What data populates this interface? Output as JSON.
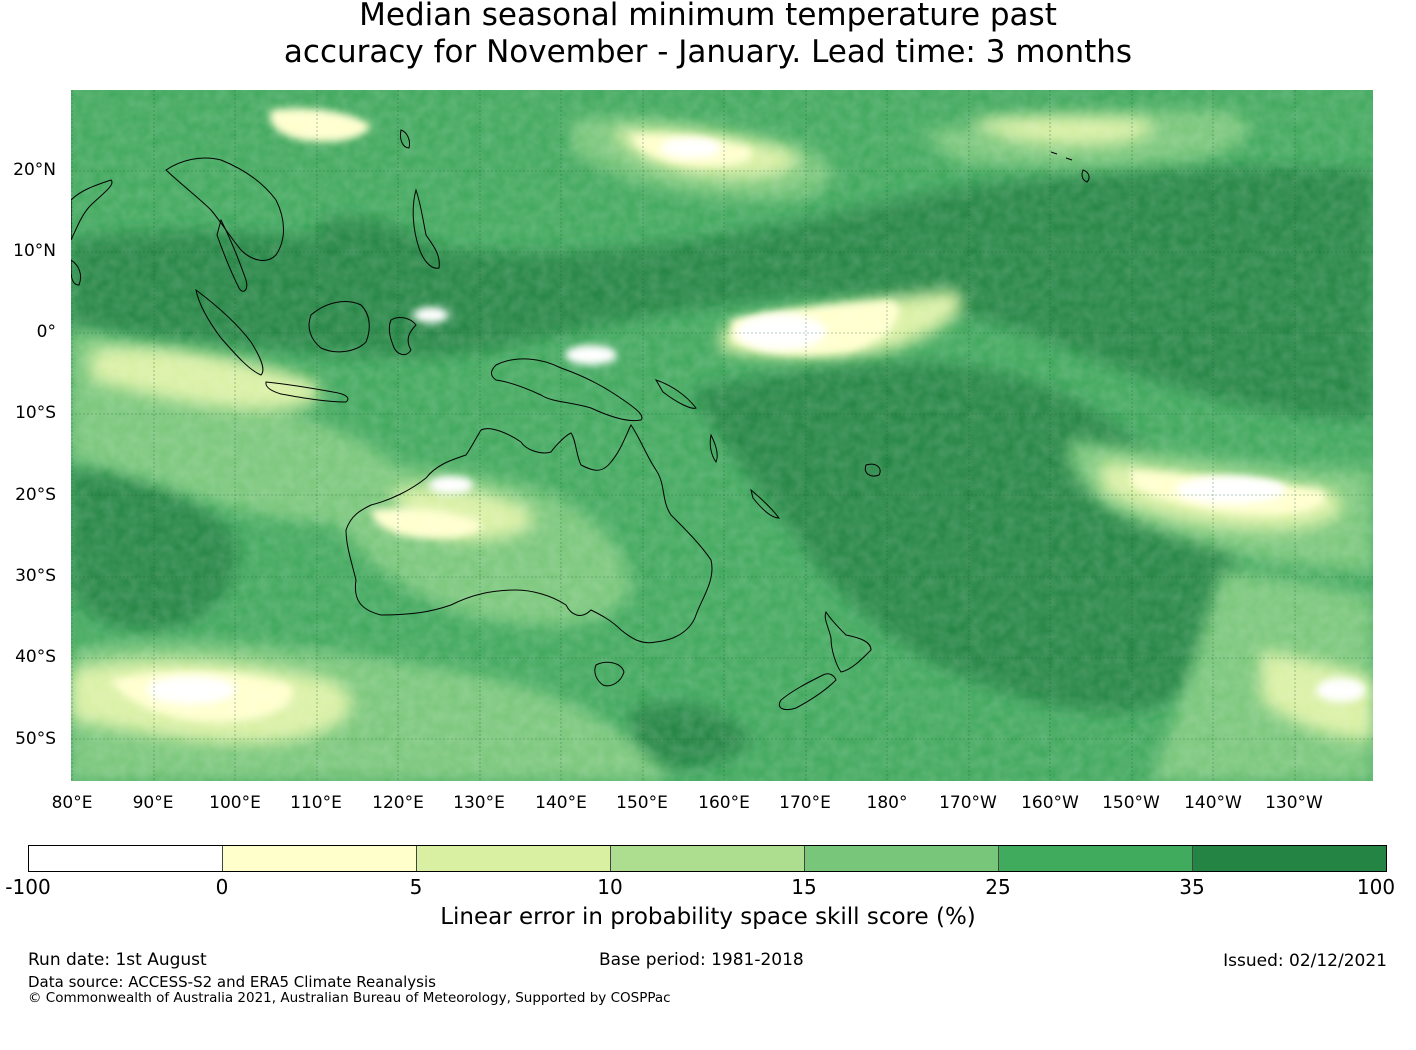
{
  "title_line1": "Median seasonal minimum temperature past",
  "title_line2": "accuracy for November - January. Lead time: 3 months",
  "map": {
    "lat_labels": [
      "20°N",
      "10°N",
      "0°",
      "10°S",
      "20°S",
      "30°S",
      "40°S",
      "50°S"
    ],
    "lon_labels": [
      "80°E",
      "90°E",
      "100°E",
      "110°E",
      "120°E",
      "130°E",
      "140°E",
      "150°E",
      "160°E",
      "170°E",
      "180°",
      "170°W",
      "160°W",
      "150°W",
      "140°W",
      "130°W"
    ]
  },
  "colorbar": {
    "colors": [
      "#ffffff",
      "#ffffcc",
      "#d9f0a3",
      "#addd8e",
      "#78c679",
      "#41ab5d",
      "#238443"
    ],
    "ticks": [
      "-100",
      "0",
      "5",
      "10",
      "15",
      "25",
      "35",
      "100"
    ],
    "label": "Linear error in probability space skill score (%)"
  },
  "footer": {
    "run_date": "Run date: 1st August",
    "base_period": "Base period: 1981-2018",
    "issued": "Issued: 02/12/2021",
    "data_source": "Data source: ACCESS-S2 and ERA5 Climate Reanalysis",
    "copyright": "© Commonwealth of Australia 2021, Australian Bureau of Meteorology, Supported by COSPPac"
  }
}
